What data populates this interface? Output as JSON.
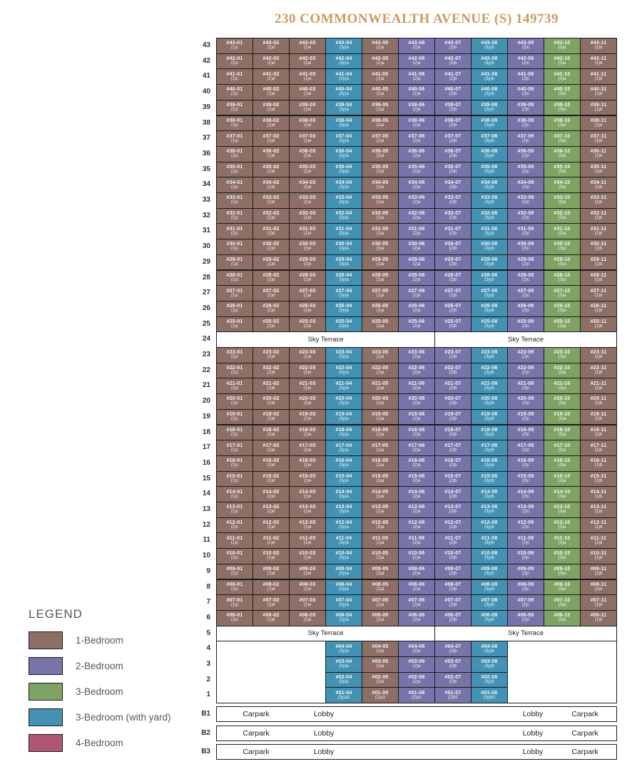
{
  "title": "230 COMMONWEALTH AVENUE (S) 149739",
  "legend": {
    "heading": "LEGEND",
    "items": [
      {
        "label": "1-Bedroom",
        "bedroom": "1br",
        "color": "#8e6f66"
      },
      {
        "label": "2-Bedroom",
        "bedroom": "2br",
        "color": "#7874aa"
      },
      {
        "label": "3-Bedroom",
        "bedroom": "3br",
        "color": "#7fa364"
      },
      {
        "label": "3-Bedroom (with yard)",
        "bedroom": "3bry",
        "color": "#4391b3"
      },
      {
        "label": "4-Bedroom",
        "bedroom": "4br",
        "color": "#ae5673"
      }
    ]
  },
  "stack_plan": {
    "unit_prefix": "#",
    "stacks": [
      {
        "stack": "01",
        "unit_type": "(1)c",
        "bedroom": "1br"
      },
      {
        "stack": "02",
        "unit_type": "(1)d",
        "bedroom": "1br"
      },
      {
        "stack": "03",
        "unit_type": "(1)e",
        "bedroom": "1br"
      },
      {
        "stack": "04",
        "unit_type": "(3y)a",
        "bedroom": "3bry"
      },
      {
        "stack": "05",
        "unit_type": "(1)a",
        "bedroom": "1br"
      },
      {
        "stack": "06",
        "unit_type": "(2)a",
        "bedroom": "2br"
      },
      {
        "stack": "07",
        "unit_type": "(2)b",
        "bedroom": "2br"
      },
      {
        "stack": "08",
        "unit_type": "(3y)b",
        "bedroom": "3bry"
      },
      {
        "stack": "09",
        "unit_type": "(2)c",
        "bedroom": "2br"
      },
      {
        "stack": "10",
        "unit_type": "(3)a",
        "bedroom": "3br"
      },
      {
        "stack": "11",
        "unit_type": "(1)b",
        "bedroom": "1br"
      }
    ],
    "full_unit_floors": [
      43,
      42,
      41,
      40,
      39,
      38,
      37,
      36,
      35,
      34,
      33,
      32,
      31,
      30,
      29,
      28,
      27,
      26,
      25,
      23,
      22,
      21,
      20,
      19,
      18,
      17,
      16,
      15,
      14,
      13,
      12,
      11,
      10,
      9,
      8,
      7,
      6
    ],
    "sky_terrace_floors": [
      24,
      5
    ],
    "sky_terrace_label": "Sky Terrace",
    "partial_floors": [
      {
        "floor": 4,
        "stacks": [
          "04",
          "05",
          "06",
          "07",
          "08"
        ],
        "unit_types": [
          "(3y)a",
          "(1)a",
          "(2)a",
          "(2)b",
          "(3y)b"
        ]
      },
      {
        "floor": 3,
        "stacks": [
          "04",
          "05",
          "06",
          "07",
          "08"
        ],
        "unit_types": [
          "(3y)a",
          "(1)a",
          "(2)a",
          "(2)b",
          "(3y)b"
        ]
      },
      {
        "floor": 2,
        "stacks": [
          "04",
          "05",
          "06",
          "07",
          "08"
        ],
        "unit_types": [
          "(3y)a",
          "(1)a",
          "(2)a",
          "(2)b",
          "(3y)b"
        ]
      },
      {
        "floor": 1,
        "stacks": [
          "04",
          "05",
          "06",
          "07",
          "08"
        ],
        "unit_types": [
          "(3y)a1",
          "(1)a1",
          "(2)a1",
          "(2)b1",
          "(3y)b1"
        ]
      }
    ],
    "basements": [
      {
        "label": "B1",
        "cells": [
          "Carpark",
          "Lobby",
          "Lobby",
          "Carpark"
        ]
      },
      {
        "label": "B2",
        "cells": [
          "Carpark",
          "Lobby",
          "Lobby",
          "Carpark"
        ]
      },
      {
        "label": "B3",
        "cells": [
          "Carpark",
          "Lobby",
          "Lobby",
          "Carpark"
        ]
      }
    ]
  },
  "colors": {
    "border": "#1b1b1b",
    "title_text": "#c79c60",
    "bedroom_colors": {
      "1br": "#8e6f66",
      "2br": "#7874aa",
      "3br": "#7fa364",
      "3bry": "#4391b3",
      "4br": "#ae5673"
    }
  }
}
